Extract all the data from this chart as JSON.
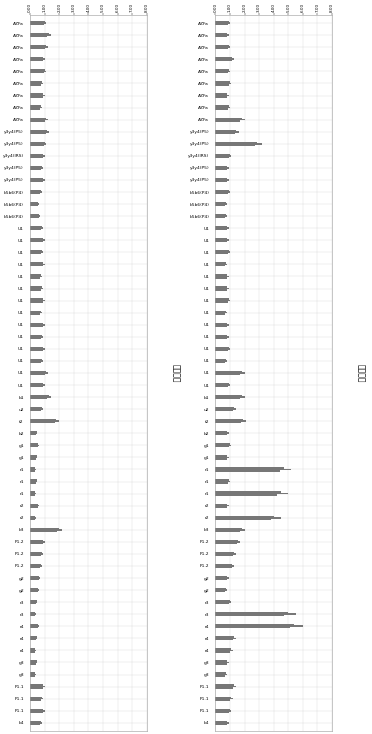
{
  "labels": [
    "AZFa",
    "AZFa",
    "AZFa",
    "AZFa",
    "AZFa",
    "AZFa",
    "AZFa",
    "AZFa",
    "AZFa",
    "y3y4(P5)",
    "y3y4(P5)",
    "y3y4(IRS)",
    "y3y4(P5)",
    "y3y4(P5)",
    "b5b6(P4)",
    "b5b6(P4)",
    "b5b6(P4)",
    "U1",
    "U1",
    "U1",
    "U1",
    "U1",
    "U1",
    "U1",
    "U1",
    "U1",
    "U1",
    "U1",
    "U1",
    "U1",
    "U1",
    "b1",
    "u2",
    "t2",
    "b2",
    "g1",
    "g1",
    "r1",
    "r1",
    "r1",
    "r2",
    "r2",
    "b3",
    "P1.2",
    "P1.2",
    "P1.2",
    "g2",
    "g2",
    "r3",
    "r3",
    "r4",
    "r4",
    "r4",
    "g3",
    "g3",
    "P1.1",
    "P1.1",
    "P1.1",
    "b4"
  ],
  "left_values": [
    1.1,
    1.4,
    1.2,
    1.0,
    1.1,
    0.9,
    1.0,
    0.8,
    1.2,
    1.3,
    1.1,
    1.0,
    0.9,
    1.0,
    0.8,
    0.6,
    0.7,
    0.9,
    1.0,
    0.9,
    1.0,
    0.8,
    0.9,
    1.0,
    0.8,
    1.0,
    0.9,
    1.0,
    0.9,
    1.2,
    1.0,
    1.4,
    0.9,
    2.0,
    0.5,
    0.6,
    0.5,
    0.4,
    0.5,
    0.4,
    0.6,
    0.4,
    2.2,
    1.0,
    0.9,
    0.8,
    0.7,
    0.6,
    0.5,
    0.4,
    0.6,
    0.5,
    0.4,
    0.5,
    0.4,
    1.0,
    0.9,
    1.0,
    0.8
  ],
  "right_values": [
    1.0,
    0.9,
    1.0,
    1.3,
    1.0,
    1.1,
    0.9,
    1.0,
    2.0,
    1.6,
    3.2,
    1.1,
    0.9,
    0.9,
    1.0,
    0.8,
    0.8,
    0.9,
    0.9,
    1.0,
    0.8,
    0.9,
    0.9,
    1.0,
    0.8,
    0.9,
    0.9,
    1.0,
    0.8,
    2.0,
    1.0,
    2.0,
    1.4,
    2.1,
    0.9,
    1.1,
    0.9,
    5.2,
    1.0,
    5.0,
    0.9,
    4.5,
    2.0,
    1.7,
    1.4,
    1.3,
    0.9,
    0.8,
    1.1,
    5.5,
    6.0,
    1.4,
    1.2,
    0.9,
    0.8,
    1.4,
    1.2,
    1.1,
    0.9
  ],
  "left_title": "正常对照",
  "right_title": "核察样品",
  "xlim": [
    0,
    8
  ],
  "xtick_labels": [
    "0.00",
    "1.00",
    "2.00",
    "3.00",
    "4.00",
    "5.00",
    "6.00",
    "7.00",
    "8.00"
  ],
  "bar_color": "#777777",
  "background": "#ffffff",
  "figsize": [
    3.72,
    7.34
  ],
  "dpi": 100
}
